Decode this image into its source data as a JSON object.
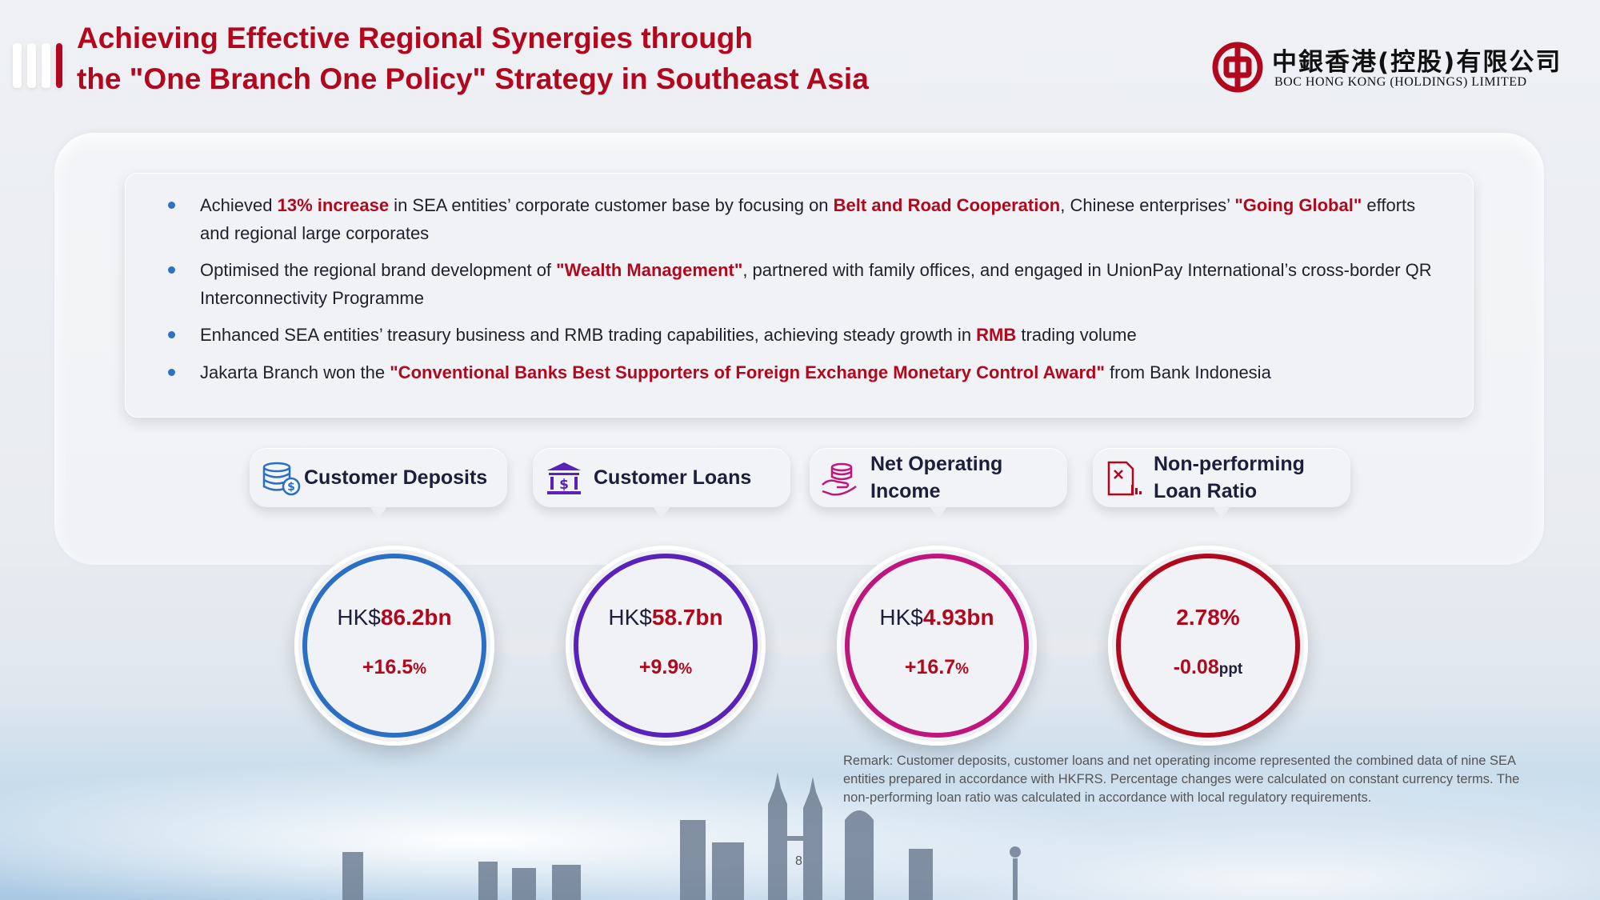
{
  "header": {
    "title_line1": "Achieving Effective Regional Synergies through",
    "title_line2": "the \"One Branch One Policy\" Strategy in Southeast Asia",
    "logo_cn": "中銀香港(控股)有限公司",
    "logo_en": "BOC HONG KONG (HOLDINGS) LIMITED"
  },
  "bullets": [
    {
      "p1": "Achieved ",
      "h1": "13% increase",
      "p2": " in SEA entities’ corporate customer base by focusing on ",
      "h2": "Belt and Road Cooperation",
      "p3": ", Chinese enterprises’ ",
      "h3": "\"Going Global\"",
      "p4": "  efforts and regional large corporates"
    },
    {
      "p1": "Optimised the regional brand development of ",
      "h1": "\"Wealth Management\"",
      "p2": ", partnered with family offices, and engaged in UnionPay International’s cross-border QR Interconnectivity Programme"
    },
    {
      "p1": "Enhanced SEA entities’ treasury business and RMB trading capabilities, achieving steady growth in ",
      "h1": "RMB",
      "p2": " trading volume"
    },
    {
      "p1": "Jakarta Branch won the ",
      "h1": "\"Conventional Banks Best Supporters of Foreign Exchange Monetary Control Award\"",
      "p2": " from Bank Indonesia"
    }
  ],
  "metrics": [
    {
      "label": "Customer Deposits",
      "icon": "coins-dollar-icon",
      "prefix": "HK$",
      "value": "86.2bn",
      "change": "+16.5",
      "unit": "%",
      "color": "#2a6fc4"
    },
    {
      "label": "Customer Loans",
      "icon": "bank-building-icon",
      "prefix": "HK$",
      "value": "58.7bn",
      "change": "+9.9",
      "unit": "%",
      "color": "#5a22b8"
    },
    {
      "label_line1": "Net Operating",
      "label_line2": "Income",
      "icon": "coins-hand-icon",
      "prefix": "HK$",
      "value": "4.93bn",
      "change": "+16.7",
      "unit": "%",
      "color": "#c0157c"
    },
    {
      "label_line1": "Non-performing",
      "label_line2": "Loan Ratio",
      "icon": "document-chart-icon",
      "prefix": "",
      "value": "2.78%",
      "change": "-0.08",
      "unit": "ppt",
      "color": "#b2081e"
    }
  ],
  "remark": "Remark: Customer deposits, customer loans and net operating income represented the combined data of nine SEA entities prepared in accordance with HKFRS. Percentage changes were calculated on constant currency terms. The non-performing loan ratio was calculated in accordance with local regulatory requirements.",
  "page_number": "8",
  "colors": {
    "accent": "#b2081e",
    "deposits": "#2a6fc4",
    "loans": "#5a22b8",
    "income": "#c0157c",
    "npl": "#b2081e"
  }
}
